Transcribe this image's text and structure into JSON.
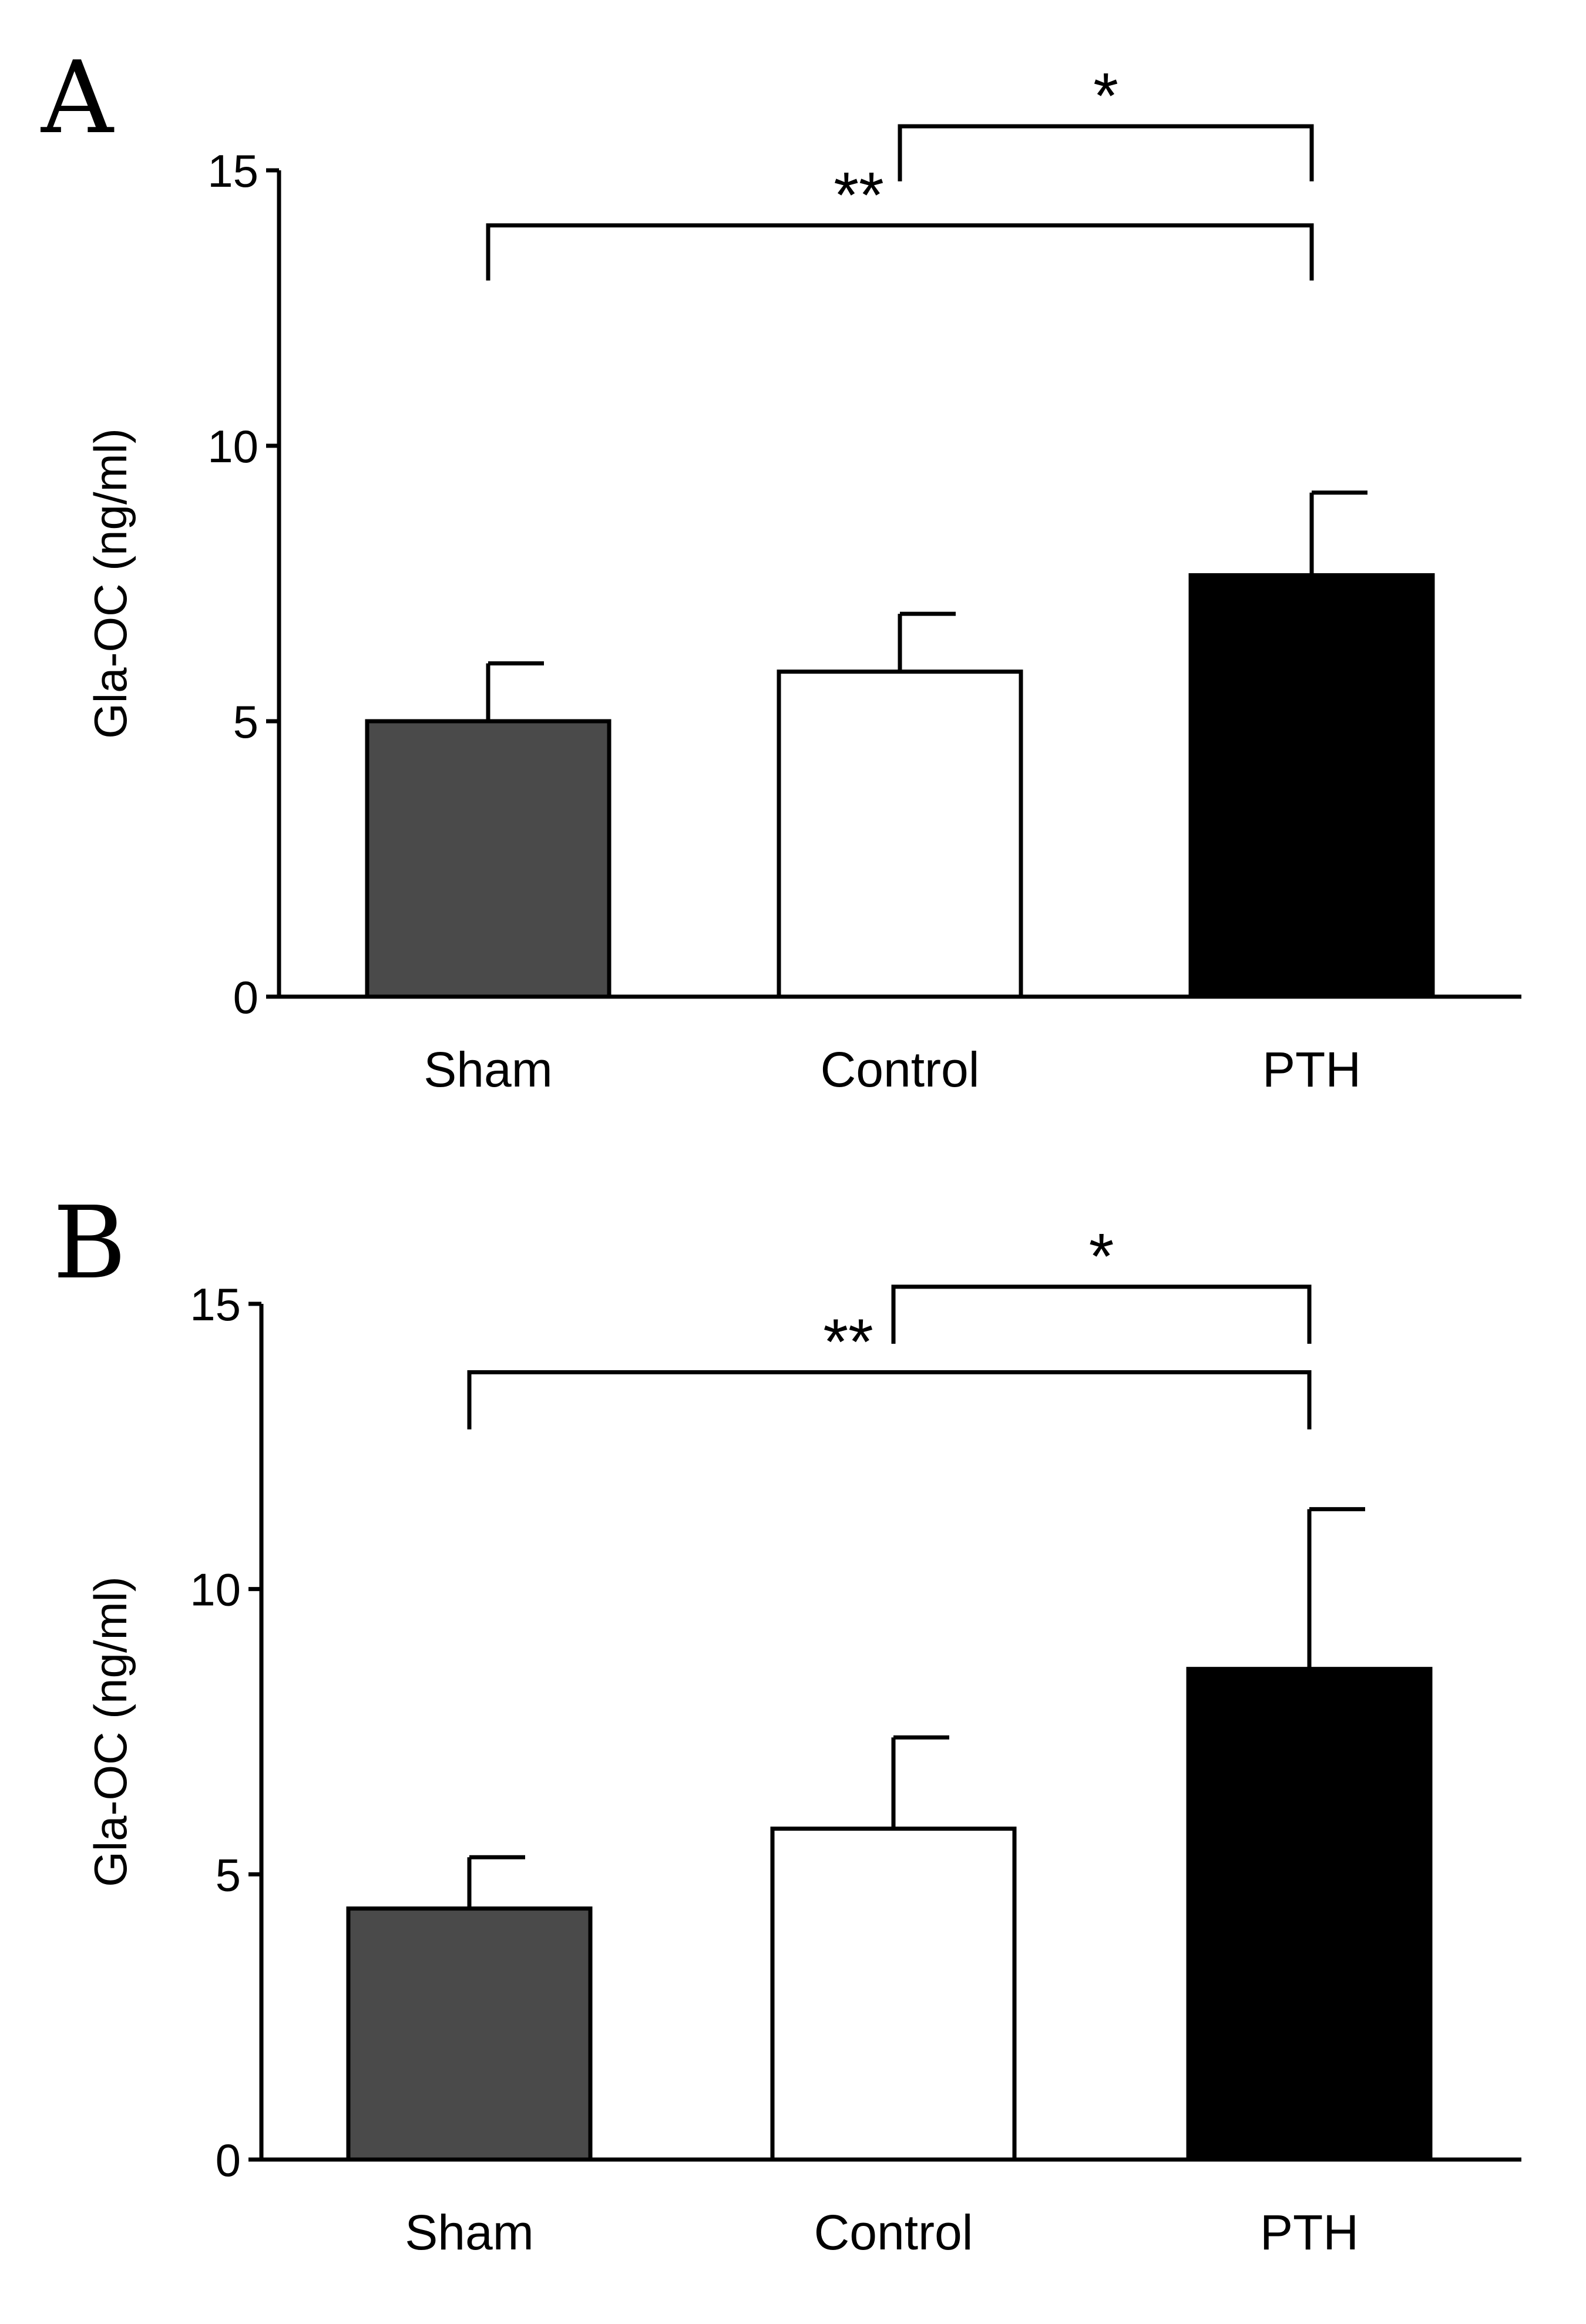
{
  "chart_data": [
    {
      "type": "bar",
      "panel": "A",
      "ylabel": "Gla-OC (ng/ml)",
      "ylim": [
        0,
        15
      ],
      "yticks": [
        0,
        5,
        10,
        15
      ],
      "categories": [
        "Sham",
        "Control",
        "PTH"
      ],
      "values": [
        5.0,
        5.9,
        7.65
      ],
      "errors": [
        1.05,
        1.05,
        1.5
      ],
      "colors": [
        "#4a4a4a",
        "#ffffff",
        "#000000"
      ],
      "significance": [
        {
          "from": "Control",
          "to": "PTH",
          "label": "*",
          "level": 15.8,
          "drop_from": 14.8,
          "drop_to": 14.8
        },
        {
          "from": "Sham",
          "to": "PTH",
          "label": "**",
          "level": 14.0,
          "drop_from": 13.0,
          "drop_to": 13.0
        }
      ]
    },
    {
      "type": "bar",
      "panel": "B",
      "ylabel": "Gla-OC  (ng/ml)",
      "ylim": [
        0,
        15
      ],
      "yticks": [
        0,
        5,
        10,
        15
      ],
      "categories": [
        "Sham",
        "Control",
        "PTH"
      ],
      "values": [
        4.4,
        5.8,
        8.6
      ],
      "errors": [
        0.9,
        1.6,
        2.8
      ],
      "colors": [
        "#4a4a4a",
        "#ffffff",
        "#000000"
      ],
      "significance": [
        {
          "from": "Control",
          "to": "PTH",
          "label": "*",
          "level": 15.3,
          "drop_from": 14.3,
          "drop_to": 14.3
        },
        {
          "from": "Sham",
          "to": "PTH",
          "label": "**",
          "level": 13.8,
          "drop_from": 12.8,
          "drop_to": 12.8
        }
      ]
    }
  ]
}
